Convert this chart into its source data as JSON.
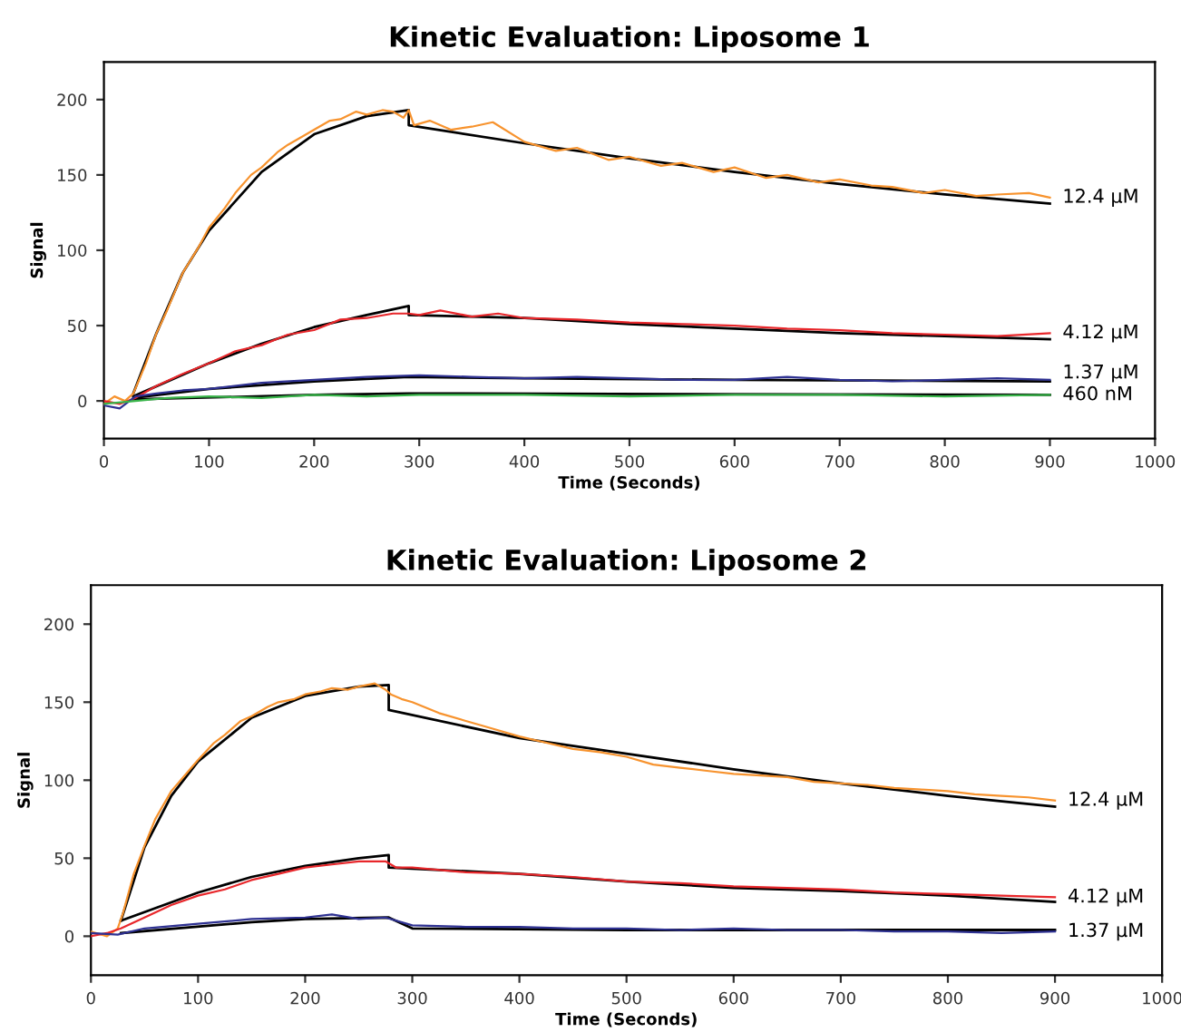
{
  "chart_data": [
    {
      "type": "line",
      "title": "Kinetic Evaluation: Liposome 1",
      "xlabel": "Time (Seconds)",
      "ylabel": "Signal",
      "xlim": [
        0,
        1000
      ],
      "ylim": [
        -25,
        225
      ],
      "xticks": [
        0,
        100,
        200,
        300,
        400,
        500,
        600,
        700,
        800,
        900,
        1000
      ],
      "yticks": [
        0,
        50,
        100,
        150,
        200
      ],
      "grid": false,
      "legend": false,
      "series": [
        {
          "name": "12.4 µM",
          "color": "#f7932e",
          "x": [
            0,
            10,
            20,
            28,
            40,
            50,
            60,
            75,
            90,
            100,
            115,
            125,
            140,
            150,
            165,
            175,
            190,
            200,
            215,
            225,
            240,
            250,
            265,
            275,
            285,
            290,
            295,
            310,
            330,
            350,
            370,
            400,
            430,
            450,
            480,
            500,
            530,
            550,
            580,
            600,
            630,
            650,
            680,
            700,
            730,
            750,
            780,
            800,
            830,
            850,
            880,
            900
          ],
          "values": [
            -2,
            3,
            0,
            5,
            25,
            45,
            60,
            85,
            102,
            115,
            128,
            138,
            150,
            155,
            165,
            170,
            176,
            180,
            186,
            187,
            192,
            190,
            193,
            192,
            188,
            193,
            183,
            186,
            180,
            182,
            185,
            172,
            166,
            168,
            160,
            162,
            156,
            158,
            152,
            155,
            148,
            150,
            145,
            147,
            143,
            142,
            138,
            140,
            136,
            137,
            138,
            135
          ]
        },
        {
          "name": "4.12 µM",
          "color": "#e8272b",
          "x": [
            0,
            15,
            30,
            50,
            75,
            100,
            125,
            150,
            175,
            200,
            225,
            250,
            275,
            290,
            300,
            320,
            350,
            375,
            400,
            450,
            500,
            550,
            600,
            650,
            700,
            750,
            800,
            850,
            900
          ],
          "values": [
            0,
            -2,
            2,
            10,
            18,
            25,
            33,
            37,
            44,
            47,
            54,
            55,
            58,
            58,
            57,
            60,
            56,
            58,
            55,
            54,
            52,
            51,
            50,
            48,
            47,
            45,
            44,
            43,
            45
          ]
        },
        {
          "name": "1.37 µM",
          "color": "#2e3192",
          "x": [
            0,
            15,
            30,
            50,
            75,
            100,
            150,
            200,
            250,
            300,
            350,
            400,
            450,
            500,
            550,
            600,
            650,
            700,
            750,
            800,
            850,
            900
          ],
          "values": [
            -3,
            -5,
            3,
            5,
            7,
            8,
            12,
            14,
            16,
            17,
            16,
            15,
            16,
            15,
            14,
            14,
            16,
            14,
            13,
            14,
            15,
            14
          ]
        },
        {
          "name": "460 nM",
          "color": "#39b54a",
          "x": [
            0,
            30,
            60,
            100,
            150,
            200,
            250,
            300,
            400,
            500,
            600,
            700,
            800,
            900
          ],
          "values": [
            -2,
            0,
            2,
            3,
            2,
            4,
            3,
            4,
            4,
            3,
            4,
            4,
            3,
            4
          ]
        },
        {
          "color": "#000000",
          "x": [
            28,
            50,
            75,
            100,
            150,
            200,
            250,
            290,
            290,
            400,
            500,
            600,
            700,
            800,
            900
          ],
          "values": [
            5,
            45,
            85,
            113,
            152,
            177,
            189,
            193,
            183,
            171,
            161,
            152,
            144,
            137,
            131
          ]
        },
        {
          "color": "#000000",
          "x": [
            28,
            100,
            150,
            200,
            250,
            290,
            290,
            400,
            500,
            600,
            700,
            800,
            900
          ],
          "values": [
            3,
            25,
            38,
            49,
            57,
            63,
            57,
            55,
            51,
            48,
            45,
            43,
            41
          ]
        },
        {
          "color": "#000000",
          "x": [
            28,
            100,
            200,
            290,
            400,
            600,
            900
          ],
          "values": [
            2,
            8,
            13,
            16,
            15,
            14,
            13
          ]
        },
        {
          "color": "#000000",
          "x": [
            28,
            200,
            290,
            900
          ],
          "values": [
            1,
            4,
            5,
            4
          ]
        }
      ]
    },
    {
      "type": "line",
      "title": "Kinetic Evaluation: Liposome 2",
      "xlabel": "Time (Seconds)",
      "ylabel": "Signal",
      "xlim": [
        0,
        1000
      ],
      "ylim": [
        -25,
        225
      ],
      "xticks": [
        0,
        100,
        200,
        300,
        400,
        500,
        600,
        700,
        800,
        900,
        1000
      ],
      "yticks": [
        0,
        50,
        100,
        150,
        200
      ],
      "grid": false,
      "legend": false,
      "series": [
        {
          "name": "12.4 µM",
          "color": "#f7932e",
          "x": [
            0,
            15,
            25,
            30,
            40,
            50,
            60,
            75,
            90,
            100,
            115,
            125,
            140,
            150,
            165,
            175,
            190,
            200,
            215,
            225,
            240,
            250,
            265,
            275,
            280,
            290,
            300,
            325,
            350,
            375,
            400,
            425,
            450,
            475,
            500,
            525,
            550,
            575,
            600,
            625,
            650,
            675,
            700,
            725,
            750,
            775,
            800,
            825,
            850,
            875,
            900
          ],
          "values": [
            3,
            0,
            5,
            15,
            40,
            58,
            75,
            93,
            105,
            113,
            124,
            129,
            138,
            141,
            147,
            150,
            152,
            155,
            157,
            159,
            158,
            160,
            162,
            158,
            155,
            152,
            150,
            143,
            138,
            133,
            128,
            124,
            120,
            118,
            115,
            110,
            108,
            106,
            104,
            103,
            102,
            99,
            98,
            97,
            95,
            94,
            93,
            91,
            90,
            89,
            87
          ]
        },
        {
          "name": "4.12 µM",
          "color": "#e8272b",
          "x": [
            0,
            15,
            28,
            50,
            75,
            100,
            125,
            150,
            175,
            200,
            225,
            250,
            275,
            285,
            300,
            350,
            400,
            450,
            500,
            550,
            600,
            650,
            700,
            750,
            800,
            850,
            900
          ],
          "values": [
            0,
            2,
            5,
            12,
            20,
            26,
            30,
            36,
            40,
            44,
            46,
            48,
            48,
            44,
            44,
            41,
            40,
            38,
            35,
            34,
            32,
            31,
            30,
            28,
            27,
            26,
            25
          ]
        },
        {
          "name": "1.37 µM",
          "color": "#2e3192",
          "x": [
            0,
            25,
            50,
            100,
            150,
            200,
            225,
            250,
            275,
            300,
            350,
            400,
            450,
            500,
            550,
            600,
            650,
            700,
            750,
            800,
            850,
            900
          ],
          "values": [
            2,
            1,
            5,
            8,
            11,
            12,
            14,
            11,
            12,
            7,
            6,
            6,
            5,
            5,
            4,
            5,
            4,
            4,
            3,
            3,
            2,
            3
          ]
        },
        {
          "color": "#000000",
          "x": [
            28,
            50,
            75,
            100,
            150,
            200,
            250,
            278,
            278,
            400,
            500,
            600,
            700,
            800,
            900
          ],
          "values": [
            10,
            57,
            90,
            112,
            140,
            154,
            160,
            161,
            145,
            127,
            117,
            107,
            98,
            90,
            83
          ]
        },
        {
          "color": "#000000",
          "x": [
            28,
            100,
            150,
            200,
            250,
            278,
            278,
            400,
            500,
            600,
            700,
            800,
            900
          ],
          "values": [
            10,
            28,
            38,
            45,
            50,
            52,
            44,
            40,
            35,
            31,
            29,
            26,
            22
          ]
        },
        {
          "color": "#000000",
          "x": [
            28,
            150,
            200,
            278,
            300,
            500,
            900
          ],
          "values": [
            2,
            9,
            11,
            12,
            5,
            4,
            4
          ]
        }
      ]
    }
  ]
}
